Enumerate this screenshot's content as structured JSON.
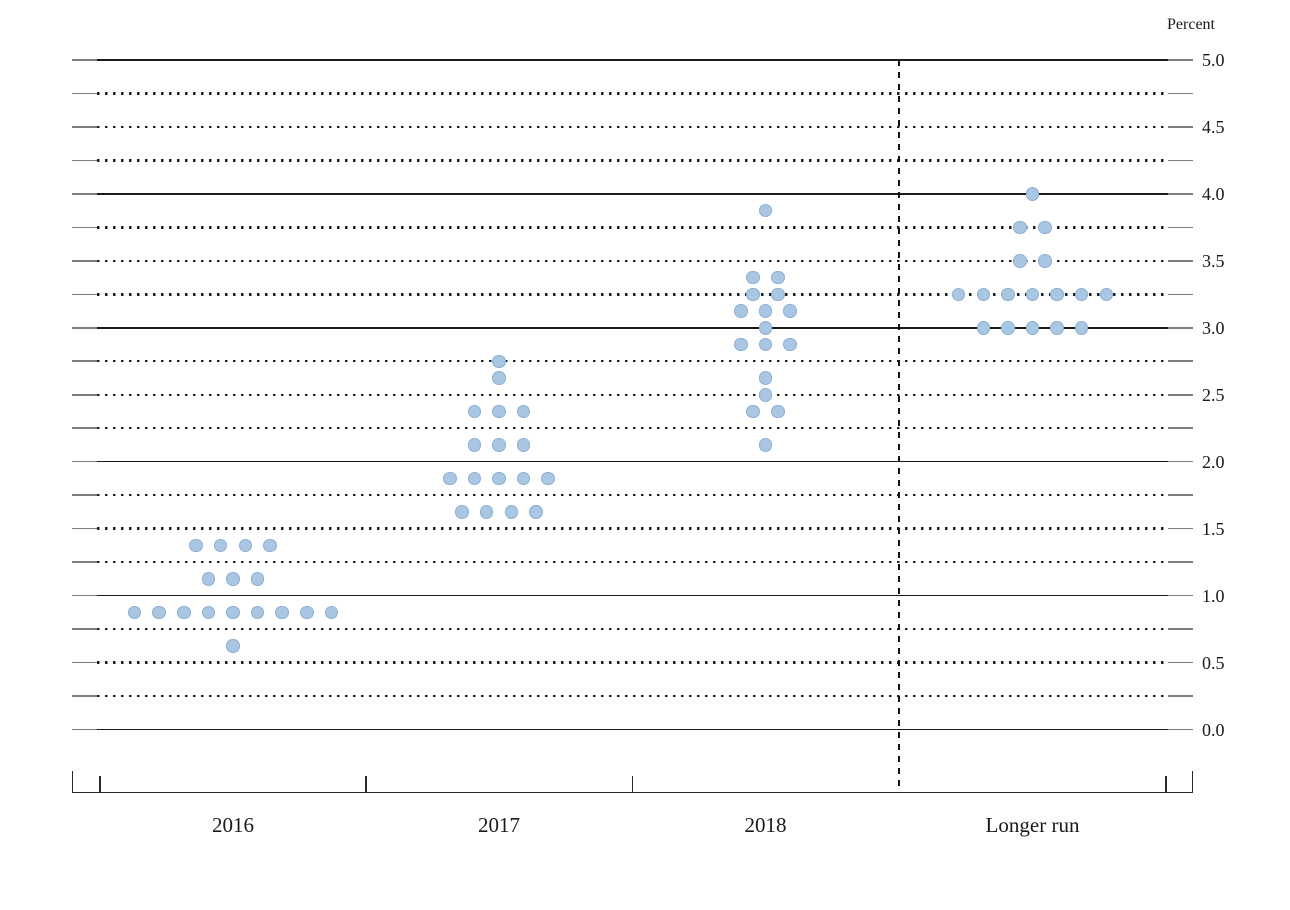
{
  "figure": {
    "unit_label": "Percent",
    "background": "#ffffff",
    "colors": {
      "dot_fill": "#a9c6e3",
      "dot_edge": "#6e94be",
      "grid_black": "#1a1a1a",
      "grid_cap_gray": "#7d7d7d",
      "axis_color": "#2a2a2a",
      "text_color": "#1a1a1a"
    }
  },
  "chart_data": {
    "type": "scatter",
    "subtype": "fomc-dot-plot",
    "title": "",
    "unit_label": "Percent",
    "categories": [
      "2016",
      "2017",
      "2018",
      "Longer run"
    ],
    "ylim": [
      0.0,
      5.0
    ],
    "grid_step": 0.25,
    "label_step": 0.5,
    "ytick_labels": [
      "5.0",
      "4.5",
      "4.0",
      "3.5",
      "3.0",
      "2.5",
      "2.0",
      "1.5",
      "1.0",
      "0.5",
      "0.0"
    ],
    "grid": "solid lines at integers, dotted lines at quarter points",
    "legend_position": "none",
    "separator": "dashed vertical line between 2018 and Longer run",
    "dots_per_category": 17,
    "series": [
      {
        "category": "2016",
        "dots": [
          {
            "rate": 1.375,
            "count": 4
          },
          {
            "rate": 1.125,
            "count": 3
          },
          {
            "rate": 0.875,
            "count": 9
          },
          {
            "rate": 0.625,
            "count": 1
          }
        ]
      },
      {
        "category": "2017",
        "dots": [
          {
            "rate": 2.75,
            "count": 1
          },
          {
            "rate": 2.625,
            "count": 1
          },
          {
            "rate": 2.375,
            "count": 3
          },
          {
            "rate": 2.125,
            "count": 3
          },
          {
            "rate": 1.875,
            "count": 5
          },
          {
            "rate": 1.625,
            "count": 4
          }
        ]
      },
      {
        "category": "2018",
        "dots": [
          {
            "rate": 3.875,
            "count": 1
          },
          {
            "rate": 3.375,
            "count": 2
          },
          {
            "rate": 3.25,
            "count": 2
          },
          {
            "rate": 3.125,
            "count": 3
          },
          {
            "rate": 3.0,
            "count": 1
          },
          {
            "rate": 2.875,
            "count": 3
          },
          {
            "rate": 2.625,
            "count": 1
          },
          {
            "rate": 2.5,
            "count": 1
          },
          {
            "rate": 2.375,
            "count": 2
          },
          {
            "rate": 2.125,
            "count": 1
          }
        ]
      },
      {
        "category": "Longer run",
        "dots": [
          {
            "rate": 4.0,
            "count": 1
          },
          {
            "rate": 3.75,
            "count": 2
          },
          {
            "rate": 3.5,
            "count": 2
          },
          {
            "rate": 3.25,
            "count": 7
          },
          {
            "rate": 3.0,
            "count": 5
          }
        ]
      }
    ]
  }
}
